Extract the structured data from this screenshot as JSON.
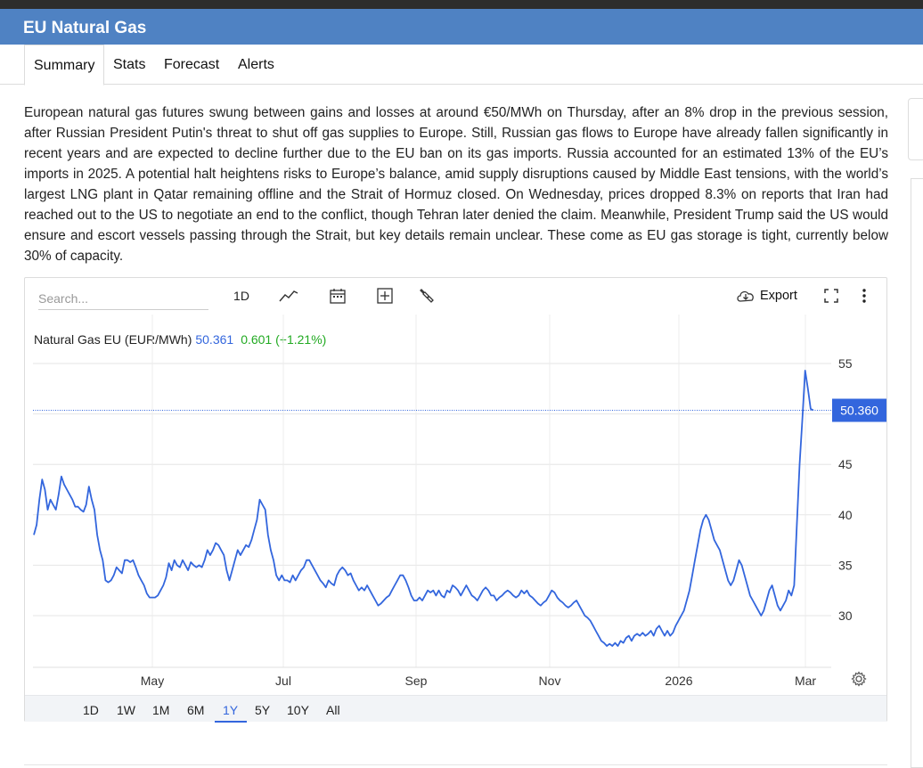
{
  "header": {
    "title": "EU Natural Gas"
  },
  "tabs": [
    {
      "label": "Summary",
      "active": true
    },
    {
      "label": "Stats",
      "active": false
    },
    {
      "label": "Forecast",
      "active": false
    },
    {
      "label": "Alerts",
      "active": false
    }
  ],
  "description": "European natural gas futures swung between gains and losses at around €50/MWh on Thursday, after an 8% drop in the previous session, after Russian President Putin's threat to shut off gas supplies to Europe. Still, Russian gas flows to Europe have already fallen significantly in recent years and are expected to decline further due to the EU ban on its gas imports. Russia accounted for an estimated 13% of the EU’s imports in 2025. A potential halt heightens risks to Europe’s balance, amid supply disruptions caused by Middle East tensions, with the world’s largest LNG plant in Qatar remaining offline and the Strait of Hormuz closed. On Wednesday, prices dropped 8.3% on reports that Iran had reached out to the US to negotiate an end to the conflict, though Tehran later denied the claim. Meanwhile, President Trump said the US would ensure and escort vessels passing through the Strait, but key details remain unclear. These come as EU gas storage is tight, currently below 30% of capacity.",
  "toolbar": {
    "search_placeholder": "Search...",
    "interval_label": "1D",
    "export_label": "Export",
    "icons": [
      "line-chart-icon",
      "calendar-icon",
      "add-indicator-icon",
      "wrench-icon",
      "cloud-download-icon",
      "fullscreen-icon",
      "more-vertical-icon"
    ]
  },
  "legend": {
    "name": "Natural Gas EU (EUR/MWh)",
    "value": "50.361",
    "change": "0.601 (+1.21%)"
  },
  "ranges": [
    {
      "label": "1D",
      "active": false
    },
    {
      "label": "1W",
      "active": false
    },
    {
      "label": "1M",
      "active": false
    },
    {
      "label": "6M",
      "active": false
    },
    {
      "label": "1Y",
      "active": true
    },
    {
      "label": "5Y",
      "active": false
    },
    {
      "label": "10Y",
      "active": false
    },
    {
      "label": "All",
      "active": false
    }
  ],
  "colors": {
    "accent": "#4f82c3",
    "line": "#3366dd",
    "up": "#22aa22"
  },
  "chart_data": {
    "type": "line",
    "title": "Natural Gas EU (EUR/MWh)",
    "xlabel": "",
    "ylabel": "",
    "x_ticks": [
      "May",
      "Jul",
      "Sep",
      "Nov",
      "2026",
      "Mar"
    ],
    "y_ticks": [
      30,
      35,
      40,
      45,
      50,
      55
    ],
    "ylim": [
      25,
      58
    ],
    "last_value_label": "50.360",
    "grid": true,
    "series": [
      {
        "values": [
          38.0,
          39.0,
          41.5,
          43.5,
          42.5,
          40.5,
          41.5,
          41.0,
          40.5,
          42.0,
          43.8,
          43.0,
          42.5,
          42.0,
          41.5,
          40.8,
          40.8,
          40.5,
          40.3,
          41.0,
          42.8,
          41.5,
          40.5,
          38.0,
          36.5,
          35.5,
          33.5,
          33.3,
          33.5,
          34.0,
          34.8,
          34.5,
          34.2,
          35.5,
          35.5,
          35.3,
          35.5,
          34.8,
          34.0,
          33.5,
          33.0,
          32.2,
          31.8,
          31.8,
          31.8,
          32.0,
          32.5,
          33.0,
          33.8,
          35.2,
          34.5,
          35.5,
          35.0,
          34.8,
          35.5,
          35.0,
          34.5,
          35.3,
          35.0,
          34.8,
          35.0,
          34.8,
          35.5,
          36.5,
          36.0,
          36.5,
          37.2,
          37.0,
          36.5,
          36.0,
          34.5,
          33.5,
          34.5,
          35.5,
          36.5,
          36.0,
          36.5,
          37.0,
          36.8,
          37.5,
          38.5,
          39.5,
          41.5,
          41.0,
          40.5,
          38.0,
          36.5,
          35.5,
          34.0,
          33.5,
          34.0,
          33.5,
          33.5,
          33.3,
          34.0,
          33.5,
          34.0,
          34.5,
          34.8,
          35.5,
          35.5,
          35.0,
          34.5,
          34.0,
          33.5,
          33.2,
          32.8,
          33.5,
          33.2,
          33.0,
          34.0,
          34.5,
          34.8,
          34.5,
          34.0,
          34.2,
          33.5,
          33.0,
          32.5,
          32.8,
          32.5,
          33.0,
          32.5,
          32.0,
          31.5,
          31.0,
          31.2,
          31.5,
          31.8,
          32.0,
          32.5,
          33.0,
          33.5,
          34.0,
          34.0,
          33.5,
          32.8,
          32.0,
          31.5,
          31.5,
          31.8,
          31.5,
          32.0,
          32.5,
          32.3,
          32.5,
          32.0,
          32.5,
          32.0,
          31.8,
          32.5,
          32.3,
          33.0,
          32.8,
          32.5,
          32.0,
          32.5,
          33.0,
          32.5,
          32.0,
          31.8,
          31.5,
          32.0,
          32.5,
          32.8,
          32.5,
          32.0,
          32.0,
          31.5,
          31.8,
          32.0,
          32.3,
          32.5,
          32.3,
          32.0,
          31.8,
          32.0,
          32.5,
          32.2,
          32.5,
          32.0,
          31.8,
          31.5,
          31.2,
          31.0,
          31.3,
          31.5,
          32.0,
          32.5,
          32.3,
          31.8,
          31.5,
          31.3,
          31.0,
          30.8,
          31.0,
          31.3,
          31.5,
          31.0,
          30.5,
          30.0,
          29.8,
          29.5,
          29.0,
          28.5,
          28.0,
          27.5,
          27.3,
          27.0,
          27.2,
          27.0,
          27.3,
          27.0,
          27.5,
          27.3,
          27.8,
          28.0,
          27.5,
          28.0,
          28.2,
          28.0,
          28.3,
          28.0,
          28.2,
          28.5,
          28.0,
          28.7,
          29.0,
          28.5,
          28.0,
          28.5,
          28.0,
          28.3,
          29.0,
          29.5,
          30.0,
          30.5,
          31.5,
          32.5,
          34.0,
          35.5,
          37.0,
          38.5,
          39.5,
          40.0,
          39.5,
          38.5,
          37.5,
          37.0,
          36.5,
          35.5,
          34.5,
          33.5,
          33.0,
          33.5,
          34.5,
          35.5,
          35.0,
          34.0,
          33.0,
          32.0,
          31.5,
          31.0,
          30.5,
          30.0,
          30.5,
          31.5,
          32.5,
          33.0,
          32.0,
          31.0,
          30.5,
          31.0,
          31.5,
          32.5,
          32.0,
          33.0,
          39.0,
          45.0,
          49.5,
          54.3,
          52.5,
          50.5,
          50.36
        ]
      }
    ]
  }
}
